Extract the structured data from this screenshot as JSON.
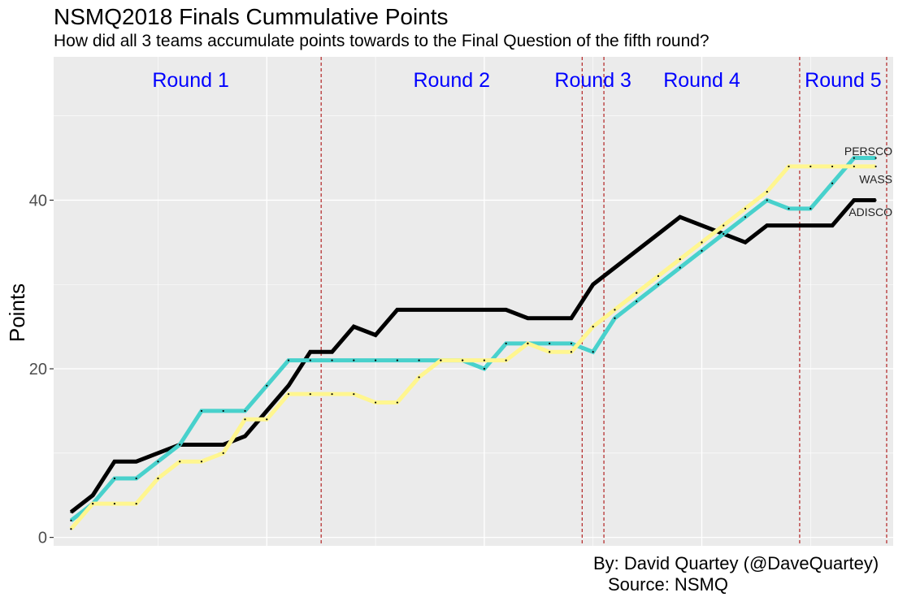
{
  "title": "NSMQ2018 Finals Cummulative Points",
  "subtitle": "How did all 3 teams accumulate points towards to the Final Question of the fifth round?",
  "caption": {
    "line1": "By: David Quartey (@DaveQuartey)",
    "line2": "Source: NSMQ"
  },
  "colors": {
    "panel_bg": "#EBEBEB",
    "grid": "#FFFFFF",
    "round_line": "#B22222",
    "round_label": "#0000FF",
    "ADISCO": "#000000",
    "PERSCO": "#48D1CC",
    "WASS": "#FFF68F"
  },
  "chart_data": {
    "type": "line",
    "title": "NSMQ2018 Finals Cummulative Points",
    "subtitle": "How did all 3 teams accumulate points towards to the Final Question of the fifth round?",
    "xlabel": "",
    "ylabel": "Points",
    "xlim": [
      0.2,
      38.8
    ],
    "ylim": [
      -1,
      57
    ],
    "y_ticks": [
      0,
      20,
      40
    ],
    "x_tick_labels_shown": false,
    "grid": true,
    "legend": "none",
    "x": [
      1,
      2,
      3,
      4,
      5,
      6,
      7,
      8,
      9,
      10,
      11,
      12,
      13,
      14,
      15,
      16,
      17,
      18,
      19,
      20,
      21,
      22,
      23,
      24,
      25,
      26,
      27,
      28,
      29,
      30,
      31,
      32,
      33,
      34,
      35,
      36,
      37,
      38
    ],
    "series": [
      {
        "name": "ADISCO",
        "color": "#000000",
        "values": [
          3,
          5,
          9,
          9,
          10,
          11,
          11,
          11,
          12,
          15,
          18,
          22,
          22,
          25,
          24,
          27,
          27,
          27,
          27,
          27,
          27,
          26,
          26,
          26,
          30,
          32,
          34,
          36,
          38,
          37,
          36,
          35,
          37,
          37,
          37,
          37,
          40,
          40
        ]
      },
      {
        "name": "PERSCO",
        "color": "#48D1CC",
        "values": [
          2,
          4,
          7,
          7,
          9,
          11,
          15,
          15,
          15,
          18,
          21,
          21,
          21,
          21,
          21,
          21,
          21,
          21,
          21,
          20,
          23,
          23,
          23,
          23,
          22,
          26,
          28,
          30,
          32,
          34,
          36,
          38,
          40,
          39,
          39,
          42,
          45,
          45
        ]
      },
      {
        "name": "WASS",
        "color": "#FFF68F",
        "values": [
          1,
          4,
          4,
          4,
          7,
          9,
          9,
          10,
          14,
          14,
          17,
          17,
          17,
          17,
          16,
          16,
          19,
          21,
          21,
          21,
          21,
          23,
          22,
          22,
          25,
          27,
          29,
          31,
          33,
          35,
          37,
          39,
          41,
          44,
          44,
          44,
          44,
          44
        ]
      }
    ],
    "round_boundaries": [
      12.5,
      24.5,
      25.5,
      34.5,
      38.5
    ],
    "round_labels": [
      {
        "text": "Round 1",
        "x": 6.5
      },
      {
        "text": "Round 2",
        "x": 18.5
      },
      {
        "text": "Round 3",
        "x": 25
      },
      {
        "text": "Round 4",
        "x": 30
      },
      {
        "text": "Round 5",
        "x": 36.5
      }
    ],
    "end_labels": [
      {
        "text": "PERSCO",
        "x": 38,
        "y": 45.8
      },
      {
        "text": "WASS",
        "x": 38,
        "y": 42.5
      },
      {
        "text": "ADISCO",
        "x": 38,
        "y": 38.6
      }
    ]
  }
}
